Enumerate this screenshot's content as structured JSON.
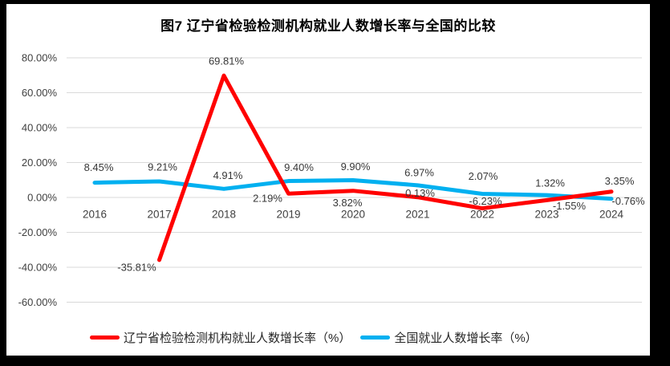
{
  "chart_data": {
    "type": "line",
    "title": "图7 辽宁省检验检测机构就业人数增长率与全国的比较",
    "categories": [
      "2016",
      "2017",
      "2018",
      "2019",
      "2020",
      "2021",
      "2022",
      "2023",
      "2024"
    ],
    "series": [
      {
        "key": "liaoning",
        "name": "辽宁省检验检测机构就业人数增长率（%）",
        "color": "#FF0000",
        "values": [
          null,
          -35.81,
          69.81,
          2.19,
          3.82,
          0.13,
          -6.23,
          -1.55,
          3.35
        ],
        "labels": [
          "",
          "-35.81%",
          "69.81%",
          "2.19%",
          "3.82%",
          "0.13%",
          "-6.23%",
          "-1.55%",
          "3.35%"
        ],
        "label_offsets": [
          [
            0,
            0
          ],
          [
            -28,
            9
          ],
          [
            3,
            -18
          ],
          [
            -26,
            6
          ],
          [
            -7,
            15
          ],
          [
            3,
            -5
          ],
          [
            4,
            -9
          ],
          [
            28,
            7
          ],
          [
            10,
            -13
          ]
        ]
      },
      {
        "key": "national",
        "name": "全国就业人数增长率（%）",
        "color": "#00B0F0",
        "values": [
          8.45,
          9.21,
          4.91,
          9.4,
          9.9,
          6.97,
          2.07,
          1.32,
          -0.76
        ],
        "labels": [
          "8.45%",
          "9.21%",
          "4.91%",
          "9.40%",
          "9.90%",
          "6.97%",
          "2.07%",
          "1.32%",
          "-0.76%"
        ],
        "label_offsets": [
          [
            5,
            -19
          ],
          [
            4,
            -18
          ],
          [
            5,
            -17
          ],
          [
            13,
            -17
          ],
          [
            3,
            -17
          ],
          [
            2,
            -16
          ],
          [
            1,
            -22
          ],
          [
            4,
            -15
          ],
          [
            21,
            3
          ]
        ]
      }
    ],
    "xlabel": "",
    "ylabel": "",
    "ylim": [
      -60,
      80
    ],
    "ytick_step": 20,
    "ytick_format": "0.00%",
    "grid": "horizontal",
    "legend_position": "bottom",
    "colors": {
      "gridline": "#D9D9D9",
      "axis_text": "#404040",
      "data_label_text": "#383838",
      "frame_border": "#000000",
      "background": "#FFFFFF"
    }
  }
}
